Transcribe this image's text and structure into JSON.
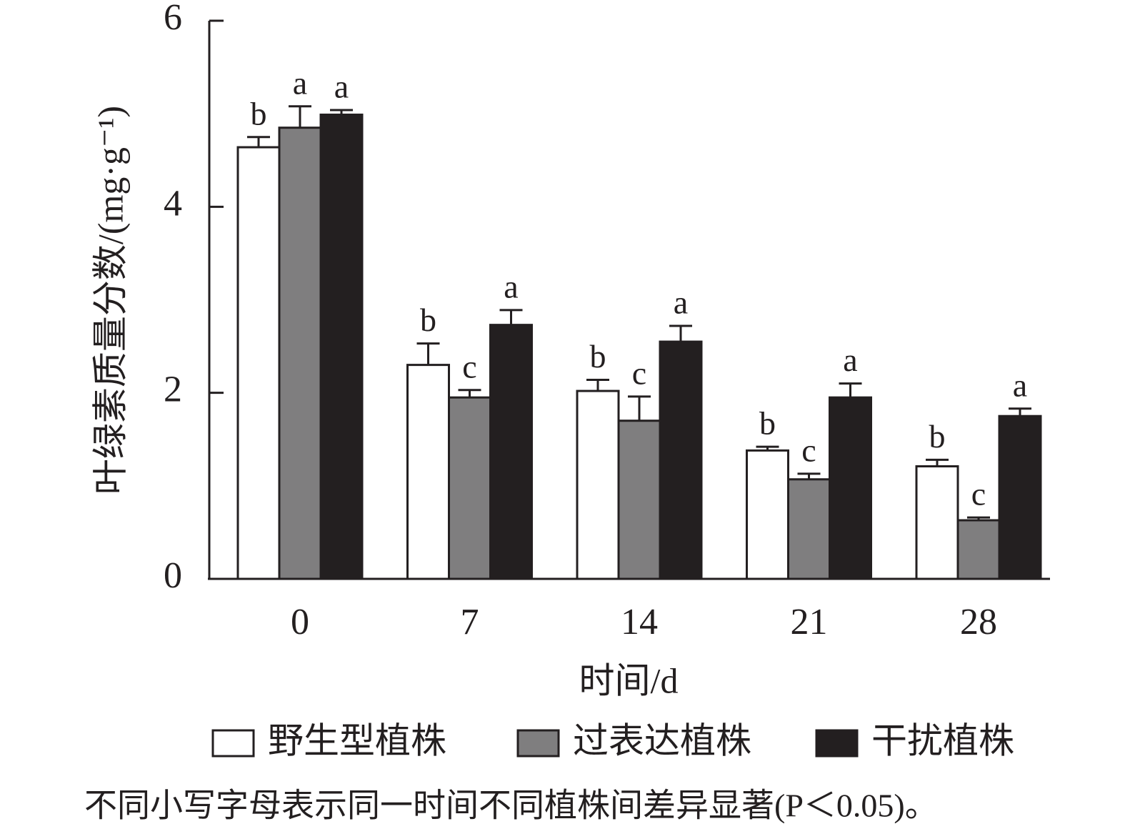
{
  "chart_data": {
    "type": "bar",
    "x_label": "时间/d",
    "y_label": "叶绿素质量分数/(mg·g⁻¹)",
    "note": "不同小写字母表示同一时间不同植株间差异显著(P＜0.05)。",
    "categories": [
      "0",
      "7",
      "14",
      "21",
      "28"
    ],
    "ylim": [
      0,
      6
    ],
    "yticks": [
      0,
      2,
      4,
      6
    ],
    "series": [
      {
        "name": "野生型植株",
        "color": "#ffffff",
        "values": [
          4.64,
          2.3,
          2.02,
          1.38,
          1.21
        ],
        "errors": [
          0.11,
          0.23,
          0.12,
          0.04,
          0.07
        ],
        "significance": [
          "b",
          "b",
          "b",
          "b",
          "b"
        ]
      },
      {
        "name": "过表达植株",
        "color": "#7f7e7f",
        "values": [
          4.85,
          1.95,
          1.7,
          1.07,
          0.63
        ],
        "errors": [
          0.23,
          0.08,
          0.26,
          0.06,
          0.03
        ],
        "significance": [
          "a",
          "c",
          "c",
          "c",
          "c"
        ]
      },
      {
        "name": "干扰植株",
        "color": "#231f20",
        "values": [
          4.99,
          2.73,
          2.55,
          1.95,
          1.75
        ],
        "errors": [
          0.05,
          0.16,
          0.17,
          0.15,
          0.08
        ],
        "significance": [
          "a",
          "a",
          "a",
          "a",
          "a"
        ]
      }
    ]
  }
}
